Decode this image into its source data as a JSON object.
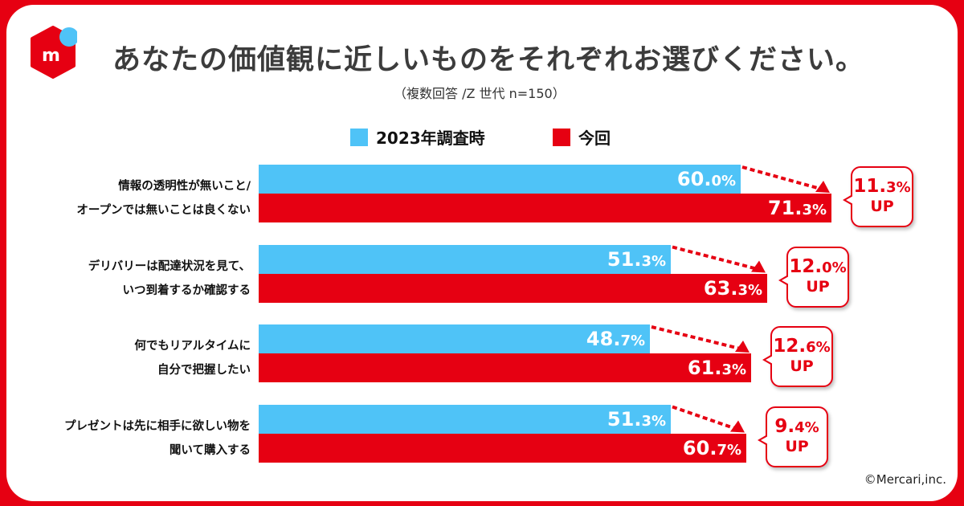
{
  "header": {
    "title": "あなたの価値観に近しいものをそれぞれお選びください。",
    "subtitle": "（複数回答 /Z 世代 n=150）"
  },
  "copyright": "©Mercari,inc.",
  "colors": {
    "series_2023": "#4fc3f7",
    "series_now": "#e60012"
  },
  "chart_data": {
    "type": "bar",
    "orientation": "horizontal",
    "title": "あなたの価値観に近しいものをそれぞれお選びください。",
    "legend": [
      "2023年調査時",
      "今回"
    ],
    "legend_position": "top",
    "categories": [
      [
        "情報の透明性が無いこと/",
        "オープンでは無いことは良くない"
      ],
      [
        "デリバリーは配達状況を見て、",
        "いつ到着するか確認する"
      ],
      [
        "何でもリアルタイムに",
        "自分で把握したい"
      ],
      [
        "プレゼントは先に相手に欲しい物を",
        "聞いて購入する"
      ]
    ],
    "series": [
      {
        "name": "2023年調査時",
        "values": [
          60.0,
          51.3,
          48.7,
          51.3
        ]
      },
      {
        "name": "今回",
        "values": [
          71.3,
          63.3,
          61.3,
          60.7
        ]
      }
    ],
    "increase": [
      11.3,
      12.0,
      12.6,
      9.4
    ],
    "increase_suffix": "UP",
    "unit": "%"
  }
}
